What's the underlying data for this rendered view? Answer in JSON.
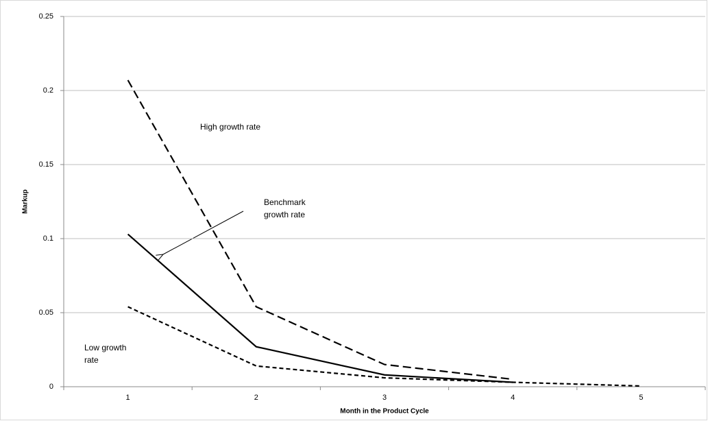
{
  "chart_data": {
    "type": "line",
    "x_label": "Month in the Product Cycle",
    "y_label": "Markup",
    "categories": [
      "1",
      "2",
      "3",
      "4",
      "5"
    ],
    "series": [
      {
        "color": "#000000",
        "dash": "long",
        "values": [
          0.207,
          0.054,
          0.015,
          0.005,
          null
        ]
      },
      {
        "color": "#000000",
        "dash": "solid",
        "values": [
          0.103,
          0.027,
          0.008,
          0.003,
          null
        ]
      },
      {
        "color": "#000000",
        "dash": "short",
        "values": [
          0.054,
          0.014,
          0.006,
          0.003,
          0.0005
        ]
      }
    ],
    "ylim": [
      0,
      0.25
    ],
    "yticks": [
      0,
      0.05,
      0.1,
      0.15,
      0.2,
      0.25
    ],
    "grid": true,
    "annotations": [
      {
        "lines": [
          "High growth rate"
        ]
      },
      {
        "lines": [
          "Benchmark",
          "growth rate"
        ]
      },
      {
        "lines": [
          "Low growth",
          "rate"
        ]
      }
    ]
  }
}
